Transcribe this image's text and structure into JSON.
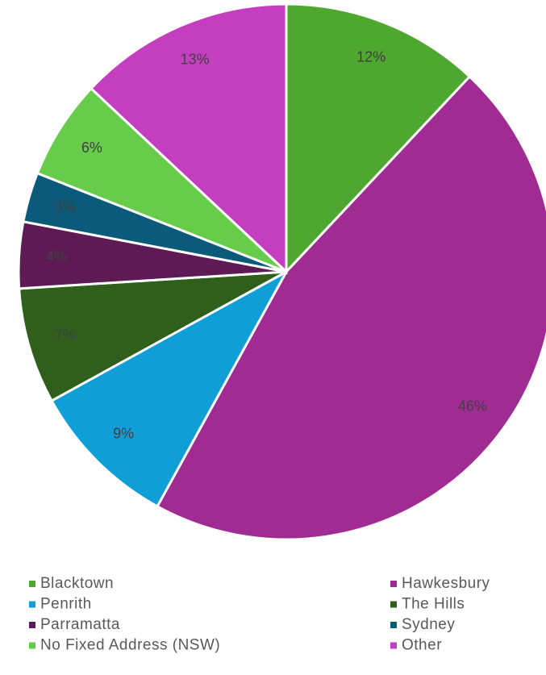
{
  "chart_data": {
    "type": "pie",
    "categories": [
      "Blacktown",
      "Hawkesbury",
      "Penrith",
      "The Hills",
      "Parramatta",
      "Sydney",
      "No Fixed Address (NSW)",
      "Other"
    ],
    "values": [
      12,
      46,
      9,
      7,
      4,
      3,
      6,
      13
    ],
    "value_labels": [
      "12%",
      "46%",
      "9%",
      "7%",
      "4%",
      "3%",
      "6%",
      "13%"
    ],
    "colors": [
      "#4ea72e",
      "#a02b93",
      "#0f9ed5",
      "#2f5f1a",
      "#5e1a55",
      "#0b5a7a",
      "#66cc4a",
      "#c43fbf"
    ],
    "legend": "bottom"
  }
}
